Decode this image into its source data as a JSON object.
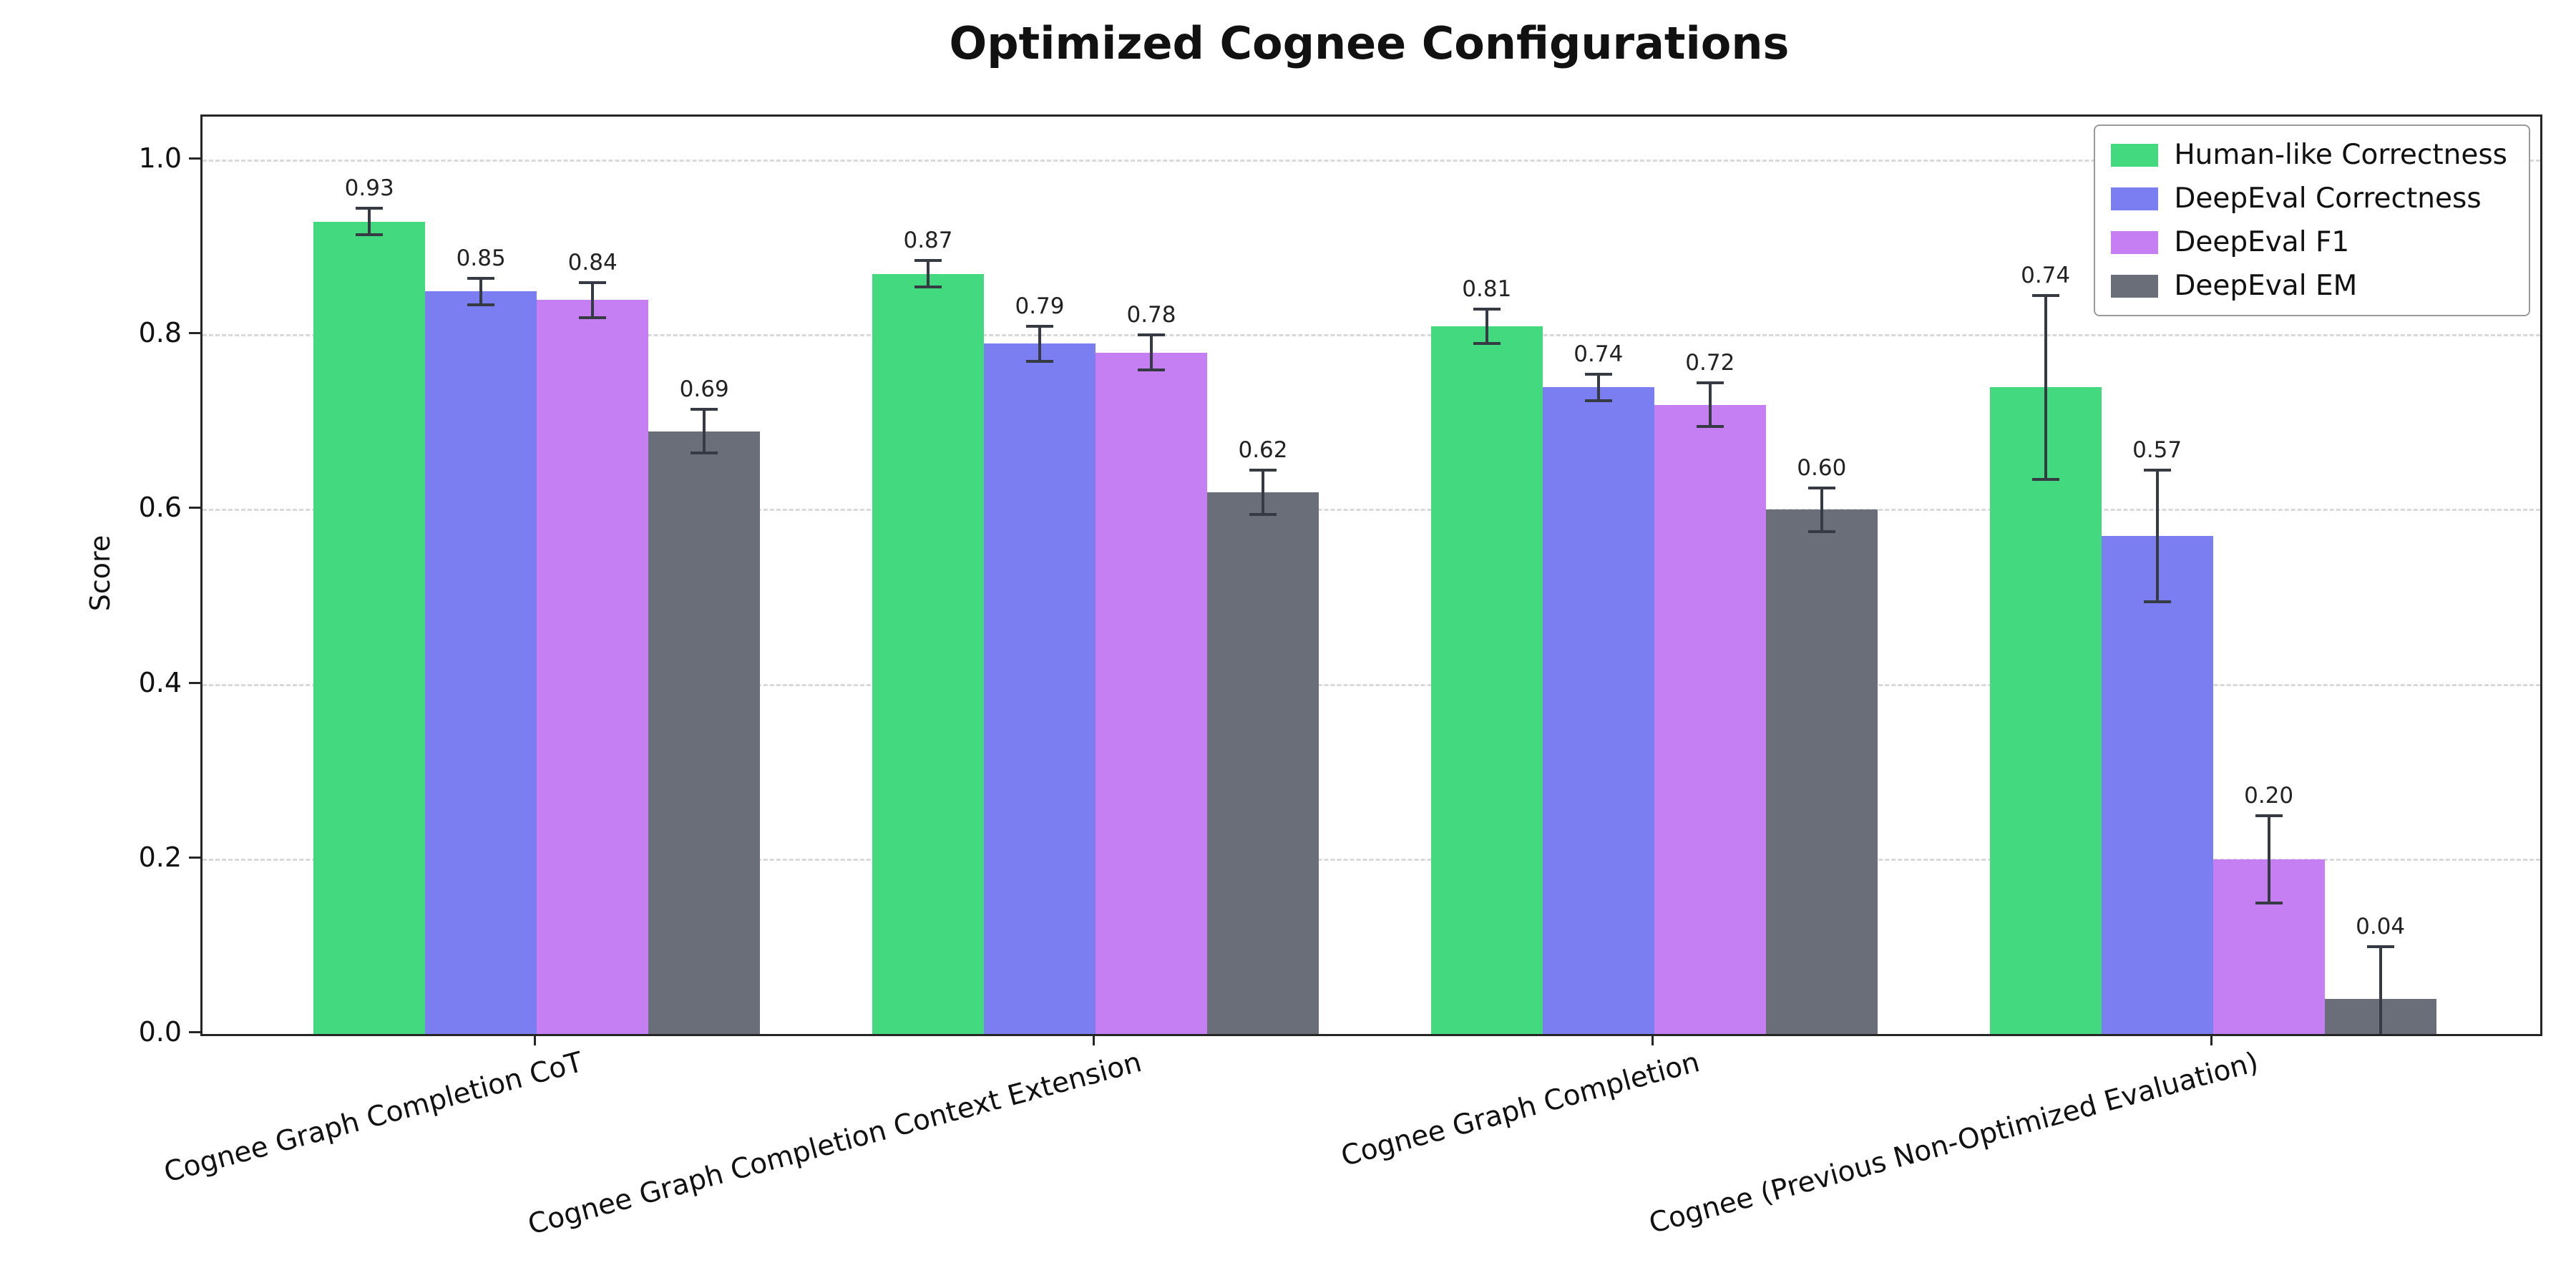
{
  "title": "Optimized Cognee Configurations",
  "chart_data": {
    "type": "bar",
    "title": "Optimized Cognee Configurations",
    "xlabel": "",
    "ylabel": "Score",
    "ylim": [
      0,
      1.05
    ],
    "yticks": [
      0.0,
      0.2,
      0.4,
      0.6,
      0.8,
      1.0
    ],
    "grid": "horizontal-dashed",
    "legend_position": "upper-right",
    "error_bars": true,
    "categories": [
      "Cognee Graph Completion CoT",
      "Cognee Graph Completion Context Extension",
      "Cognee Graph Completion",
      "Cognee (Previous Non-Optimized Evaluation)"
    ],
    "series": [
      {
        "name": "Human-like Correctness",
        "color": "#43d97e",
        "values": [
          0.93,
          0.87,
          0.81,
          0.74
        ],
        "errors": [
          0.015,
          0.015,
          0.02,
          0.105
        ]
      },
      {
        "name": "DeepEval Correctness",
        "color": "#7a7ef0",
        "values": [
          0.85,
          0.79,
          0.74,
          0.57
        ],
        "errors": [
          0.015,
          0.02,
          0.015,
          0.075
        ]
      },
      {
        "name": "DeepEval F1",
        "color": "#c67ff2",
        "values": [
          0.84,
          0.78,
          0.72,
          0.2
        ],
        "errors": [
          0.02,
          0.02,
          0.025,
          0.05
        ]
      },
      {
        "name": "DeepEval EM",
        "color": "#6a6e79",
        "values": [
          0.69,
          0.62,
          0.6,
          0.04
        ],
        "errors": [
          0.025,
          0.025,
          0.025,
          0.06
        ]
      }
    ]
  },
  "colors": {
    "error_bar": "#363a42",
    "grid": "#d9d9d9",
    "axis": "#262626",
    "legend_border": "#9a9a9a",
    "background": "#ffffff"
  }
}
